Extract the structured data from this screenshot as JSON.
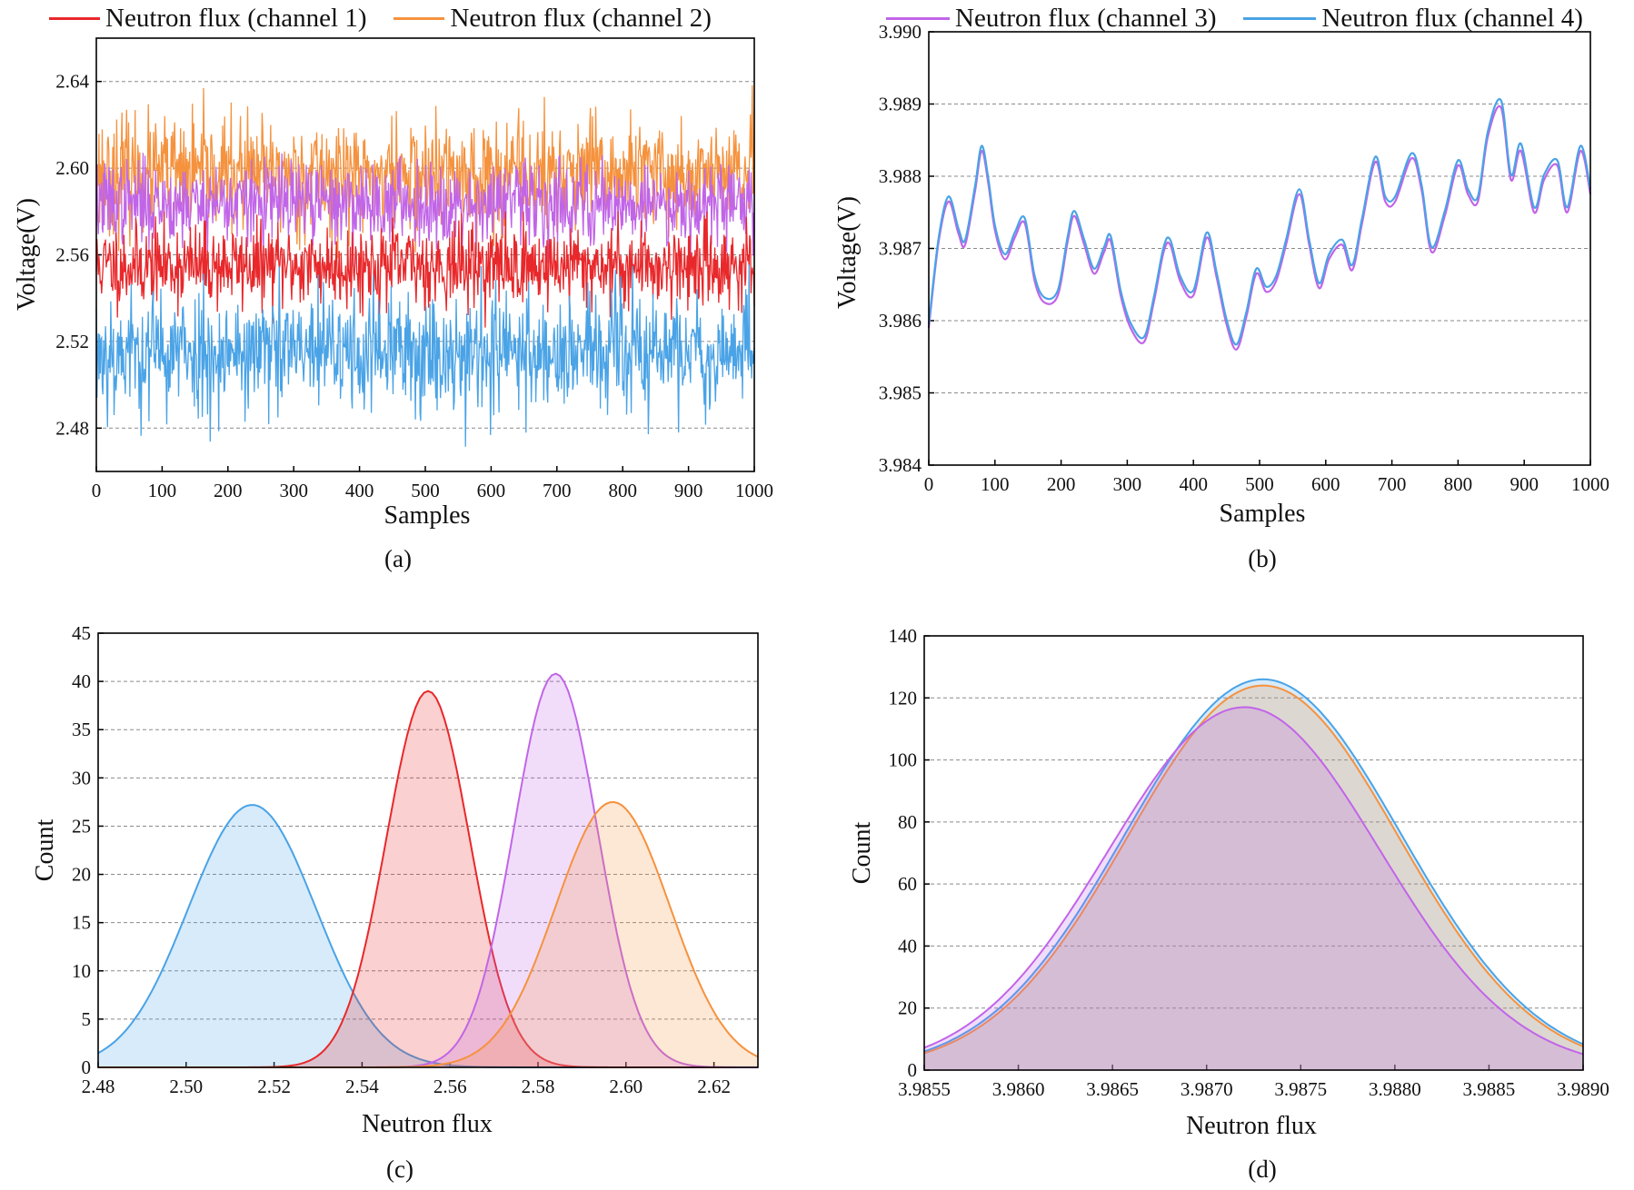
{
  "colors": {
    "ch1": "#e8282b",
    "ch2": "#f5923e",
    "ch3": "#c165e8",
    "ch4": "#4aa3e6",
    "grid": "#8a8a8a"
  },
  "chart_data": [
    {
      "id": "a",
      "type": "line",
      "caption": "(a)",
      "xlabel": "Samples",
      "ylabel": "Voltage(V)",
      "xlim": [
        0,
        1000
      ],
      "ylim": [
        2.46,
        2.66
      ],
      "xticks": [
        "0",
        "100",
        "200",
        "300",
        "400",
        "500",
        "600",
        "700",
        "800",
        "900",
        "1000"
      ],
      "yticks": [
        "2.48",
        "2.52",
        "2.56",
        "2.60",
        "2.64"
      ],
      "grid": true,
      "legend_position": "top",
      "x": {
        "start": 0,
        "end": 1000,
        "count": 1001
      },
      "series": [
        {
          "name": "Neutron flux (channel 1)",
          "color_key": "ch1",
          "mean": 2.555,
          "sd": 0.0095,
          "min": 2.521,
          "max": 2.58
        },
        {
          "name": "Neutron flux (channel 2)",
          "color_key": "ch2",
          "mean": 2.597,
          "sd": 0.013,
          "min": 2.558,
          "max": 2.645
        },
        {
          "name": "Neutron flux (channel 3)",
          "color_key": "ch3",
          "mean": 2.584,
          "sd": 0.0095,
          "min": 2.553,
          "max": 2.615
        },
        {
          "name": "Neutron flux (channel 4)",
          "color_key": "ch4",
          "mean": 2.515,
          "sd": 0.0145,
          "min": 2.469,
          "max": 2.558
        }
      ]
    },
    {
      "id": "b",
      "type": "line",
      "caption": "(b)",
      "xlabel": "Samples",
      "ylabel": "Voltage(V)",
      "xlim": [
        0,
        1000
      ],
      "ylim": [
        3.984,
        3.99
      ],
      "xticks": [
        "0",
        "100",
        "200",
        "300",
        "400",
        "500",
        "600",
        "700",
        "800",
        "900",
        "1000"
      ],
      "yticks": [
        "3.984",
        "3.985",
        "3.986",
        "3.987",
        "3.988",
        "3.989",
        "3.990"
      ],
      "grid": true,
      "legend_position": "top",
      "series": [
        {
          "name": "Neutron flux (channel 3)",
          "color_key": "ch3",
          "x": [
            0,
            15,
            30,
            45,
            55,
            70,
            80,
            90,
            100,
            115,
            130,
            145,
            160,
            175,
            195,
            210,
            220,
            235,
            250,
            265,
            275,
            290,
            305,
            325,
            340,
            355,
            365,
            380,
            400,
            420,
            435,
            450,
            465,
            480,
            495,
            510,
            525,
            540,
            560,
            575,
            590,
            605,
            625,
            640,
            655,
            675,
            690,
            705,
            730,
            745,
            760,
            780,
            800,
            815,
            830,
            845,
            865,
            880,
            895,
            915,
            930,
            950,
            965,
            985,
            1000
          ],
          "y": [
            3.9859,
            3.9871,
            3.98765,
            3.9872,
            3.98705,
            3.9878,
            3.98835,
            3.9879,
            3.98725,
            3.98685,
            3.98715,
            3.98735,
            3.98655,
            3.98625,
            3.98635,
            3.9871,
            3.98745,
            3.98705,
            3.98665,
            3.98695,
            3.9871,
            3.98635,
            3.9859,
            3.9857,
            3.98625,
            3.98695,
            3.98705,
            3.98655,
            3.98635,
            3.98715,
            3.9866,
            3.98595,
            3.9856,
            3.98605,
            3.98665,
            3.9864,
            3.98655,
            3.98705,
            3.98775,
            3.98705,
            3.98645,
            3.98685,
            3.98705,
            3.9867,
            3.98735,
            3.9882,
            3.98765,
            3.98765,
            3.98825,
            3.9878,
            3.98695,
            3.98745,
            3.98815,
            3.98775,
            3.98765,
            3.98855,
            3.98895,
            3.98795,
            3.98835,
            3.9875,
            3.98795,
            3.98815,
            3.9875,
            3.98835,
            3.98775
          ]
        },
        {
          "name": "Neutron flux (channel 4)",
          "color_key": "ch4",
          "x": [
            0,
            15,
            30,
            45,
            55,
            70,
            80,
            90,
            100,
            115,
            130,
            145,
            160,
            175,
            195,
            210,
            220,
            235,
            250,
            265,
            275,
            290,
            305,
            325,
            340,
            355,
            365,
            380,
            400,
            420,
            435,
            450,
            465,
            480,
            495,
            510,
            525,
            540,
            560,
            575,
            590,
            605,
            625,
            640,
            655,
            675,
            690,
            705,
            730,
            745,
            760,
            780,
            800,
            815,
            830,
            845,
            865,
            880,
            895,
            915,
            930,
            950,
            965,
            985,
            1000
          ],
          "y": [
            3.98595,
            3.98715,
            3.98772,
            3.98727,
            3.98712,
            3.98787,
            3.98842,
            3.98797,
            3.98732,
            3.98692,
            3.98722,
            3.98742,
            3.98662,
            3.98632,
            3.98642,
            3.98717,
            3.98752,
            3.98712,
            3.98672,
            3.98702,
            3.98717,
            3.98642,
            3.98597,
            3.98577,
            3.98632,
            3.98702,
            3.98712,
            3.98662,
            3.98642,
            3.98722,
            3.98667,
            3.98602,
            3.98567,
            3.98612,
            3.98672,
            3.98647,
            3.98662,
            3.98712,
            3.98782,
            3.98712,
            3.98652,
            3.98692,
            3.98712,
            3.98677,
            3.98742,
            3.98827,
            3.98772,
            3.98772,
            3.98832,
            3.98787,
            3.98702,
            3.98752,
            3.98822,
            3.98782,
            3.98772,
            3.98862,
            3.98905,
            3.98802,
            3.98845,
            3.98757,
            3.98802,
            3.98822,
            3.98757,
            3.98842,
            3.98782
          ]
        }
      ]
    },
    {
      "id": "c",
      "type": "area",
      "caption": "(c)",
      "xlabel": "Neutron flux",
      "ylabel": "Count",
      "xlim": [
        2.48,
        2.63
      ],
      "ylim": [
        0,
        45
      ],
      "xticks": [
        "2.48",
        "2.50",
        "2.52",
        "2.54",
        "2.56",
        "2.58",
        "2.60",
        "2.62"
      ],
      "yticks": [
        "0",
        "5",
        "10",
        "15",
        "20",
        "25",
        "30",
        "35",
        "40",
        "45"
      ],
      "grid": true,
      "series": [
        {
          "color_key": "ch4",
          "mean": 2.515,
          "sd": 0.0145,
          "peak": 27.2
        },
        {
          "color_key": "ch1",
          "mean": 2.555,
          "sd": 0.0095,
          "peak": 39.0
        },
        {
          "color_key": "ch3",
          "mean": 2.584,
          "sd": 0.0095,
          "peak": 40.8
        },
        {
          "color_key": "ch2",
          "mean": 2.597,
          "sd": 0.013,
          "peak": 27.5
        }
      ]
    },
    {
      "id": "d",
      "type": "area",
      "caption": "(d)",
      "xlabel": "Neutron flux",
      "ylabel": "Count",
      "xlim": [
        3.9855,
        3.989
      ],
      "ylim": [
        0,
        140
      ],
      "xticks": [
        "3.9855",
        "3.9860",
        "3.9865",
        "3.9870",
        "3.9875",
        "3.9880",
        "3.9885",
        "3.9890"
      ],
      "yticks": [
        "0",
        "20",
        "40",
        "60",
        "80",
        "100",
        "120",
        "140"
      ],
      "grid": true,
      "series": [
        {
          "color_key": "ch4",
          "mean": 3.9873,
          "sd": 0.00073,
          "peak": 126
        },
        {
          "color_key": "ch2",
          "mean": 3.9873,
          "sd": 0.00072,
          "peak": 124
        },
        {
          "color_key": "ch3",
          "mean": 3.9872,
          "sd": 0.00072,
          "peak": 117
        }
      ]
    }
  ]
}
